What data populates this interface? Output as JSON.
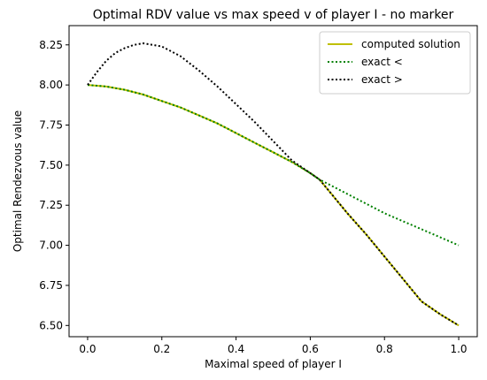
{
  "chart_data": {
    "type": "line",
    "title": "Optimal RDV value vs max speed v of player I - no marker",
    "xlabel": "Maximal speed of player I",
    "ylabel": "Optimal Rendezvous value",
    "xlim": [
      -0.05,
      1.05
    ],
    "ylim": [
      6.43,
      8.37
    ],
    "xticks": [
      0.0,
      0.2,
      0.4,
      0.6,
      0.8,
      1.0
    ],
    "xtick_labels": [
      "0.0",
      "0.2",
      "0.4",
      "0.6",
      "0.8",
      "1.0"
    ],
    "yticks": [
      6.5,
      6.75,
      7.0,
      7.25,
      7.5,
      7.75,
      8.0,
      8.25
    ],
    "ytick_labels": [
      "6.50",
      "6.75",
      "7.00",
      "7.25",
      "7.50",
      "7.75",
      "8.00",
      "8.25"
    ],
    "grid": false,
    "legend_position": "top-right",
    "series": [
      {
        "name": "computed solution",
        "color": "#bfbf00",
        "style": "solid",
        "x": [
          0.0,
          0.05,
          0.1,
          0.15,
          0.2,
          0.25,
          0.3,
          0.35,
          0.4,
          0.45,
          0.5,
          0.55,
          0.6,
          0.625,
          0.65,
          0.7,
          0.75,
          0.8,
          0.85,
          0.9,
          0.95,
          1.0
        ],
        "y": [
          8.0,
          7.99,
          7.97,
          7.94,
          7.9,
          7.86,
          7.81,
          7.76,
          7.7,
          7.64,
          7.58,
          7.52,
          7.45,
          7.41,
          7.34,
          7.2,
          7.07,
          6.93,
          6.79,
          6.65,
          6.57,
          6.5
        ]
      },
      {
        "name": "exact <",
        "color": "#008000",
        "style": "dotted",
        "x": [
          0.0,
          0.05,
          0.1,
          0.15,
          0.2,
          0.25,
          0.3,
          0.35,
          0.4,
          0.45,
          0.5,
          0.55,
          0.6,
          0.625,
          0.65,
          0.7,
          0.75,
          0.8,
          0.85,
          0.9,
          0.95,
          1.0
        ],
        "y": [
          8.0,
          7.99,
          7.97,
          7.94,
          7.9,
          7.86,
          7.81,
          7.76,
          7.7,
          7.64,
          7.58,
          7.52,
          7.45,
          7.41,
          7.38,
          7.32,
          7.26,
          7.2,
          7.15,
          7.1,
          7.05,
          7.0
        ]
      },
      {
        "name": "exact >",
        "color": "#000000",
        "style": "dotted",
        "x": [
          0.0,
          0.025,
          0.05,
          0.075,
          0.1,
          0.125,
          0.15,
          0.175,
          0.2,
          0.25,
          0.3,
          0.35,
          0.4,
          0.45,
          0.5,
          0.55,
          0.6,
          0.625,
          0.65,
          0.7,
          0.75,
          0.8,
          0.85,
          0.9,
          0.95,
          1.0
        ],
        "y": [
          8.0,
          8.08,
          8.15,
          8.2,
          8.23,
          8.25,
          8.26,
          8.25,
          8.24,
          8.18,
          8.09,
          7.99,
          7.88,
          7.77,
          7.65,
          7.53,
          7.45,
          7.41,
          7.34,
          7.2,
          7.07,
          6.93,
          6.79,
          6.65,
          6.57,
          6.5
        ]
      }
    ]
  }
}
